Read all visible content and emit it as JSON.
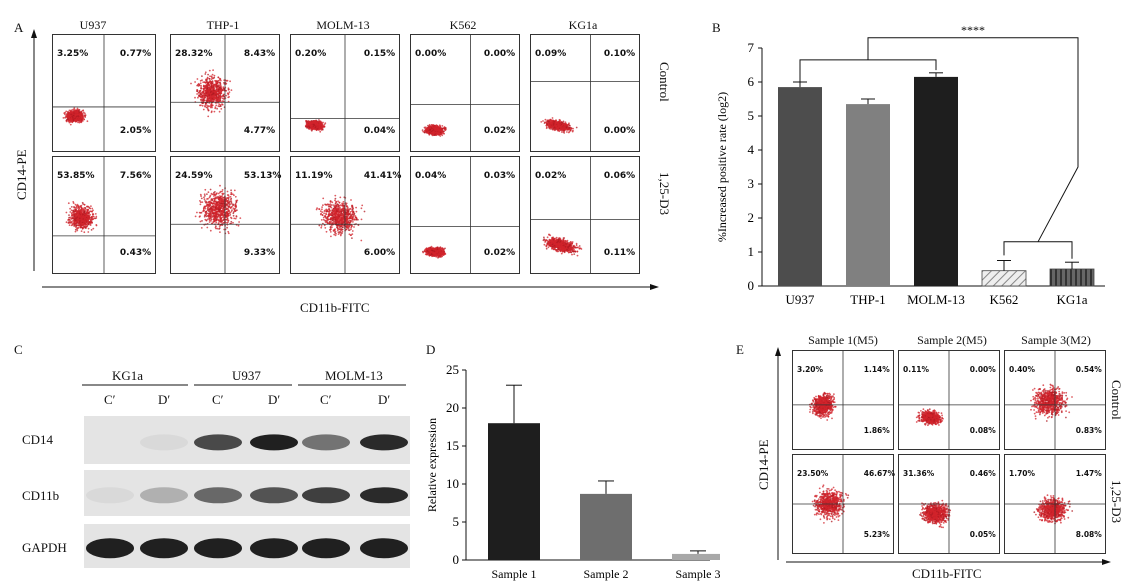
{
  "panel_a": {
    "letter": "A",
    "cells": [
      "U937",
      "THP-1",
      "MOLM-13",
      "K562",
      "KG1a"
    ],
    "rows": [
      "Control",
      "1,25-D3"
    ],
    "yaxis": "CD14-PE",
    "xaxis": "CD11b-FITC",
    "quadrants": [
      [
        [
          "3.25%",
          "0.77%",
          "2.05%"
        ],
        [
          "28.32%",
          "8.43%",
          "4.77%"
        ],
        [
          "0.20%",
          "0.15%",
          "0.04%"
        ],
        [
          "0.00%",
          "0.00%",
          "0.02%"
        ],
        [
          "0.09%",
          "0.10%",
          "0.00%"
        ]
      ],
      [
        [
          "53.85%",
          "7.56%",
          "0.43%"
        ],
        [
          "24.59%",
          "53.13%",
          "9.33%"
        ],
        [
          "11.19%",
          "41.41%",
          "6.00%"
        ],
        [
          "0.04%",
          "0.03%",
          "0.02%"
        ],
        [
          "0.02%",
          "0.06%",
          "0.11%"
        ]
      ]
    ]
  },
  "panel_b": {
    "letter": "B",
    "significance": "****",
    "chart_data": {
      "type": "bar",
      "categories": [
        "U937",
        "THP-1",
        "MOLM-13",
        "K562",
        "KG1a"
      ],
      "values": [
        5.85,
        5.35,
        6.15,
        0.45,
        0.5
      ],
      "errors": [
        0.15,
        0.15,
        0.12,
        0.3,
        0.2
      ],
      "ylabel": "%Increased positive rate (log2)",
      "ylim": [
        0,
        7
      ],
      "yticks": [
        "0",
        "1",
        "2",
        "3",
        "4",
        "5",
        "6",
        "7"
      ],
      "colors": [
        "#4d4d4d",
        "#808080",
        "#1e1e1e",
        "#d9d9d9",
        "#555555"
      ],
      "patterns": [
        "solid",
        "solid",
        "solid",
        "diagonal",
        "vertical"
      ]
    }
  },
  "panel_c": {
    "letter": "C",
    "groups": [
      "KG1a",
      "U937",
      "MOLM-13"
    ],
    "lanes": [
      "C′",
      "D′",
      "C′",
      "D′",
      "C′",
      "D′"
    ],
    "proteins": [
      "CD14",
      "CD11b",
      "GAPDH"
    ]
  },
  "panel_d": {
    "letter": "D",
    "chart_data": {
      "type": "bar",
      "categories": [
        "Sample 1",
        "Sample 2",
        "Sample 3"
      ],
      "values": [
        18,
        8.7,
        0.8
      ],
      "errors": [
        5,
        1.7,
        0.4
      ],
      "ylabel": "Relative expression",
      "ylim": [
        0,
        25
      ],
      "yticks": [
        "0",
        "5",
        "10",
        "15",
        "20",
        "25"
      ],
      "colors": [
        "#1e1e1e",
        "#6e6e6e",
        "#a8a8a8"
      ]
    }
  },
  "panel_e": {
    "letter": "E",
    "samples": [
      "Sample 1(M5)",
      "Sample 2(M5)",
      "Sample 3(M2)"
    ],
    "rows": [
      "Control",
      "1,25-D3"
    ],
    "yaxis": "CD14-PE",
    "xaxis": "CD11b-FITC",
    "quadrants": [
      [
        [
          "3.20%",
          "1.14%",
          "1.86%"
        ],
        [
          "0.11%",
          "0.00%",
          "0.08%"
        ],
        [
          "0.40%",
          "0.54%",
          "0.83%"
        ]
      ],
      [
        [
          "23.50%",
          "46.67%",
          "5.23%"
        ],
        [
          "31.36%",
          "0.46%",
          "0.05%"
        ],
        [
          "1.70%",
          "1.47%",
          "8.08%"
        ]
      ]
    ]
  }
}
